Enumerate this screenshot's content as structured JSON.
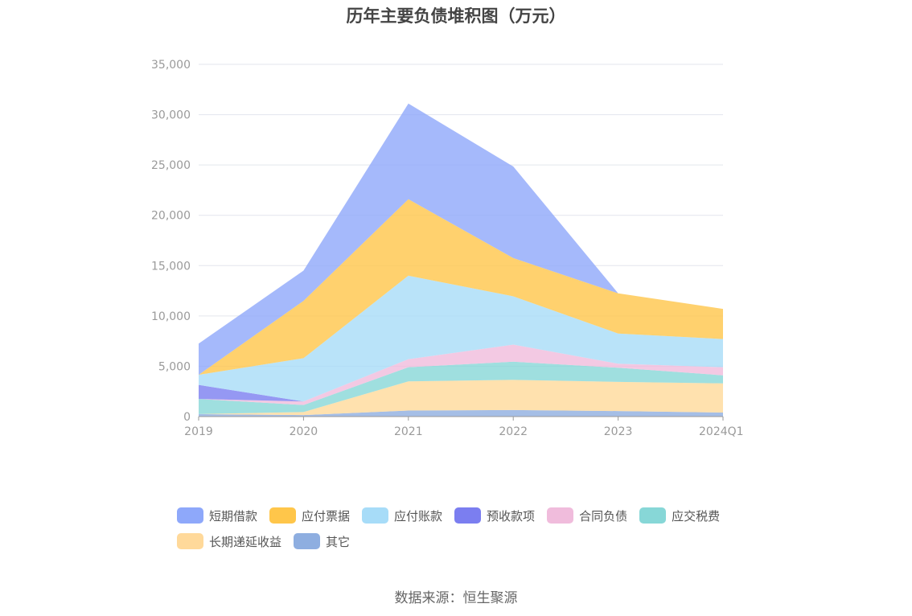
{
  "chart_data": {
    "type": "area",
    "stacked": true,
    "title": "历年主要负债堆积图（万元）",
    "x": [
      "2019",
      "2020",
      "2021",
      "2022",
      "2023",
      "2024Q1"
    ],
    "ylim": [
      0,
      35000
    ],
    "yticks": [
      0,
      5000,
      10000,
      15000,
      20000,
      25000,
      30000,
      35000
    ],
    "ytick_labels": [
      "0",
      "5,000",
      "10,000",
      "15,000",
      "20,000",
      "25,000",
      "30,000",
      "35,000"
    ],
    "grid": true,
    "legend_position": "bottom",
    "series": [
      {
        "name": "其它",
        "color": "#8eaee0",
        "values": [
          250,
          150,
          600,
          650,
          550,
          400
        ]
      },
      {
        "name": "长期递延收益",
        "color": "#ffd99a",
        "values": [
          0,
          300,
          2900,
          3000,
          2900,
          2900
        ]
      },
      {
        "name": "应交税费",
        "color": "#87d7d7",
        "values": [
          1500,
          700,
          1400,
          1800,
          1400,
          800
        ]
      },
      {
        "name": "合同负债",
        "color": "#f0bcdc",
        "values": [
          0,
          350,
          800,
          1700,
          400,
          800
        ]
      },
      {
        "name": "预收款项",
        "color": "#7b7ef0",
        "values": [
          1400,
          0,
          0,
          0,
          0,
          0
        ]
      },
      {
        "name": "应付账款",
        "color": "#a7dcf8",
        "values": [
          1000,
          4300,
          8300,
          4800,
          3000,
          2800
        ]
      },
      {
        "name": "应付票据",
        "color": "#ffc64a",
        "values": [
          0,
          5700,
          7600,
          3800,
          4000,
          3000
        ]
      },
      {
        "name": "短期借款",
        "color": "#8ea8fa",
        "values": [
          3100,
          3000,
          9500,
          9100,
          0,
          0
        ]
      }
    ],
    "legend_order": [
      "短期借款",
      "应付票据",
      "应付账款",
      "预收款项",
      "合同负债",
      "应交税费",
      "长期递延收益",
      "其它"
    ]
  },
  "source": "数据来源：恒生聚源"
}
